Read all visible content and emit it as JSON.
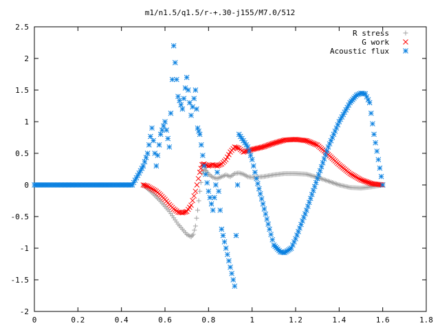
{
  "chart_data": {
    "type": "scatter",
    "title": "m1/n1.5/q1.5/r-+.30-j155/M7.0/512",
    "xlabel": "",
    "ylabel": "",
    "xlim": [
      0,
      1.8
    ],
    "ylim": [
      -2,
      2.5
    ],
    "xticks": [
      "0",
      "0.2",
      "0.4",
      "0.6",
      "0.8",
      "1",
      "1.2",
      "1.4",
      "1.6",
      "1.8"
    ],
    "yticks": [
      "2.5",
      "2",
      "1.5",
      "1",
      "0.5",
      "0",
      "-0.5",
      "-1",
      "-1.5",
      "-2"
    ],
    "grid": false,
    "legend_position": "top-right",
    "series": [
      {
        "name": "R stress",
        "marker": "plus",
        "color": "#a0a0a0",
        "x": [
          0.5,
          0.52,
          0.54,
          0.56,
          0.58,
          0.6,
          0.62,
          0.64,
          0.66,
          0.68,
          0.7,
          0.72,
          0.73,
          0.74,
          0.75,
          0.76,
          0.77,
          0.78,
          0.79,
          0.8,
          0.82,
          0.84,
          0.86,
          0.88,
          0.9,
          0.92,
          0.94,
          0.96,
          0.98,
          1.0,
          1.05,
          1.1,
          1.15,
          1.2,
          1.25,
          1.3,
          1.35,
          1.4,
          1.45,
          1.5,
          1.55,
          1.6
        ],
        "y": [
          0.0,
          -0.06,
          -0.12,
          -0.19,
          -0.26,
          -0.34,
          -0.42,
          -0.52,
          -0.62,
          -0.7,
          -0.78,
          -0.82,
          -0.78,
          -0.65,
          -0.4,
          -0.1,
          0.18,
          0.25,
          0.22,
          0.17,
          0.12,
          0.1,
          0.13,
          0.16,
          0.13,
          0.18,
          0.19,
          0.17,
          0.13,
          0.12,
          0.13,
          0.16,
          0.18,
          0.18,
          0.17,
          0.12,
          0.06,
          0.0,
          -0.04,
          -0.05,
          -0.03,
          0.0
        ]
      },
      {
        "name": "G work",
        "marker": "cross",
        "color": "#ff0000",
        "x": [
          0.5,
          0.52,
          0.54,
          0.56,
          0.58,
          0.6,
          0.62,
          0.64,
          0.66,
          0.68,
          0.7,
          0.72,
          0.74,
          0.76,
          0.77,
          0.78,
          0.8,
          0.82,
          0.84,
          0.86,
          0.88,
          0.9,
          0.92,
          0.94,
          0.96,
          0.98,
          1.0,
          1.05,
          1.1,
          1.15,
          1.2,
          1.25,
          1.3,
          1.35,
          1.4,
          1.45,
          1.5,
          1.55,
          1.6
        ],
        "y": [
          0.0,
          -0.02,
          -0.06,
          -0.1,
          -0.16,
          -0.23,
          -0.31,
          -0.38,
          -0.43,
          -0.44,
          -0.42,
          -0.32,
          -0.1,
          0.2,
          0.32,
          0.33,
          0.3,
          0.32,
          0.3,
          0.33,
          0.4,
          0.52,
          0.6,
          0.58,
          0.52,
          0.54,
          0.56,
          0.6,
          0.66,
          0.71,
          0.72,
          0.7,
          0.63,
          0.48,
          0.32,
          0.18,
          0.08,
          0.02,
          0.0
        ]
      },
      {
        "name": "Acoustic flux",
        "marker": "star",
        "color": "#0a80e0",
        "x": [
          0.0,
          0.05,
          0.1,
          0.15,
          0.2,
          0.25,
          0.3,
          0.35,
          0.4,
          0.45,
          0.5,
          0.52,
          0.54,
          0.56,
          0.58,
          0.6,
          0.62,
          0.64,
          0.66,
          0.68,
          0.7,
          0.72,
          0.74,
          0.75,
          0.76,
          0.78,
          0.8,
          0.82,
          0.84,
          0.86,
          0.88,
          0.9,
          0.92,
          0.94,
          0.96,
          0.98,
          1.0,
          1.02,
          1.05,
          1.08,
          1.1,
          1.13,
          1.15,
          1.18,
          1.2,
          1.25,
          1.3,
          1.35,
          1.4,
          1.45,
          1.48,
          1.5,
          1.52,
          1.54,
          1.56,
          1.58,
          1.6
        ],
        "y": [
          0,
          0,
          0,
          0,
          0,
          0,
          0,
          0,
          0,
          0,
          0.3,
          0.5,
          0.9,
          0.3,
          0.8,
          1.0,
          0.6,
          2.2,
          1.4,
          1.2,
          1.7,
          1.1,
          1.5,
          0.9,
          0.8,
          0.3,
          -0.1,
          -0.4,
          0.2,
          -0.7,
          -1.0,
          -1.3,
          -1.6,
          0.8,
          0.7,
          0.6,
          0.4,
          0.1,
          -0.3,
          -0.7,
          -0.95,
          -1.06,
          -1.07,
          -1.0,
          -0.85,
          -0.4,
          0.1,
          0.6,
          1.0,
          1.3,
          1.42,
          1.45,
          1.44,
          1.3,
          0.8,
          0.4,
          0.0
        ]
      }
    ]
  }
}
